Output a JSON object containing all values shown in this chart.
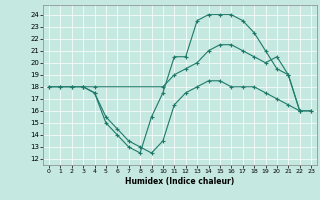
{
  "xlabel": "Humidex (Indice chaleur)",
  "xlim": [
    -0.5,
    23.5
  ],
  "ylim": [
    11.5,
    24.8
  ],
  "xticks": [
    0,
    1,
    2,
    3,
    4,
    5,
    6,
    7,
    8,
    9,
    10,
    11,
    12,
    13,
    14,
    15,
    16,
    17,
    18,
    19,
    20,
    21,
    22,
    23
  ],
  "yticks": [
    12,
    13,
    14,
    15,
    16,
    17,
    18,
    19,
    20,
    21,
    22,
    23,
    24
  ],
  "bg_color": "#c5e8e0",
  "line_color": "#1e7a6a",
  "line1_x": [
    0,
    1,
    2,
    3,
    4,
    5,
    6,
    7,
    8,
    9,
    10,
    11,
    12,
    13,
    14,
    15,
    16,
    17,
    18,
    19,
    20,
    21,
    22
  ],
  "line1_y": [
    18,
    18,
    18,
    18,
    17.5,
    15,
    14,
    13,
    12.5,
    15.5,
    17.5,
    20.5,
    20.5,
    23.5,
    24,
    24,
    24,
    23.5,
    22.5,
    21,
    19.5,
    19,
    16
  ],
  "line2_x": [
    0,
    1,
    2,
    3,
    4,
    10,
    11,
    12,
    13,
    14,
    15,
    16,
    17,
    18,
    19,
    20,
    21,
    22,
    23
  ],
  "line2_y": [
    18,
    18,
    18,
    18,
    18,
    18,
    19,
    19.5,
    20,
    21,
    21.5,
    21.5,
    21,
    20.5,
    20,
    20.5,
    19,
    16,
    16
  ],
  "line3_x": [
    3,
    4,
    5,
    6,
    7,
    8,
    9,
    10,
    11,
    12,
    13,
    14,
    15,
    16,
    17,
    18,
    19,
    20,
    21,
    22,
    23
  ],
  "line3_y": [
    18,
    17.5,
    15.5,
    14.5,
    13.5,
    13,
    12.5,
    13.5,
    16.5,
    17.5,
    18,
    18.5,
    18.5,
    18,
    18,
    18,
    17.5,
    17,
    16.5,
    16,
    16
  ]
}
